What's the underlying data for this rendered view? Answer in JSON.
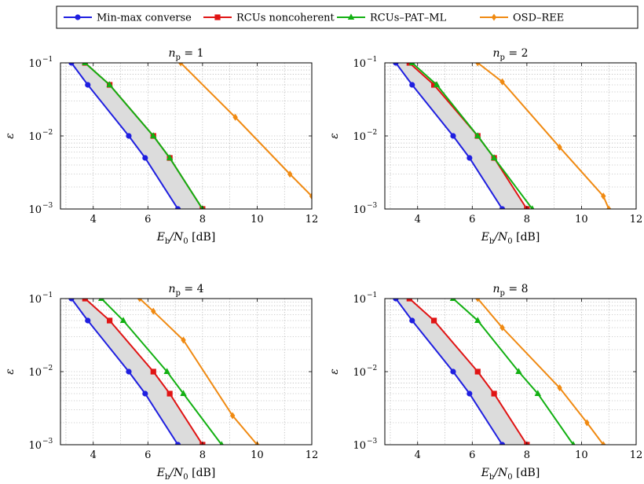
{
  "legend": [
    {
      "name": "Min-max converse",
      "color": "#1f1fe0",
      "marker": "circle"
    },
    {
      "name": "RCUs noncoherent",
      "color": "#e01414",
      "marker": "square"
    },
    {
      "name": "RCUs–PAT–ML",
      "color": "#12b012",
      "marker": "triangle"
    },
    {
      "name": "OSD–REE",
      "color": "#f08a12",
      "marker": "diamond"
    }
  ],
  "chart_data": [
    {
      "type": "line",
      "title": "n_p = 1",
      "xlabel": "E_b/N_0 [dB]",
      "ylabel": "ε",
      "xlim": [
        2.8,
        12
      ],
      "ylim": [
        0.001,
        0.1
      ],
      "yscale": "log",
      "xticks": [
        4,
        6,
        8,
        10,
        12
      ],
      "yticks": [
        "10^-1",
        "10^-2",
        "10^-3"
      ],
      "grid": true,
      "shaded_region_between": [
        "Min-max converse",
        "RCUs noncoherent"
      ],
      "series": [
        {
          "name": "Min-max converse",
          "x": [
            3.2,
            3.8,
            5.3,
            5.9,
            7.1
          ],
          "y": [
            0.1,
            0.05,
            0.01,
            0.005,
            0.001
          ]
        },
        {
          "name": "RCUs noncoherent",
          "x": [
            3.7,
            4.6,
            6.2,
            6.8,
            8.0
          ],
          "y": [
            0.1,
            0.05,
            0.01,
            0.005,
            0.001
          ]
        },
        {
          "name": "RCUs–PAT–ML",
          "x": [
            3.7,
            4.6,
            6.2,
            6.8,
            8.0
          ],
          "y": [
            0.1,
            0.05,
            0.01,
            0.005,
            0.001
          ]
        },
        {
          "name": "OSD–REE",
          "x": [
            7.2,
            9.2,
            11.2,
            12.0
          ],
          "y": [
            0.1,
            0.018,
            0.003,
            0.0015
          ]
        }
      ]
    },
    {
      "type": "line",
      "title": "n_p = 2",
      "xlabel": "E_b/N_0 [dB]",
      "ylabel": "ε",
      "xlim": [
        2.8,
        12
      ],
      "ylim": [
        0.001,
        0.1
      ],
      "yscale": "log",
      "xticks": [
        4,
        6,
        8,
        10,
        12
      ],
      "yticks": [
        "10^-1",
        "10^-2",
        "10^-3"
      ],
      "grid": true,
      "shaded_region_between": [
        "Min-max converse",
        "RCUs noncoherent"
      ],
      "series": [
        {
          "name": "Min-max converse",
          "x": [
            3.2,
            3.8,
            5.3,
            5.9,
            7.1
          ],
          "y": [
            0.1,
            0.05,
            0.01,
            0.005,
            0.001
          ]
        },
        {
          "name": "RCUs noncoherent",
          "x": [
            3.7,
            4.6,
            6.2,
            6.8,
            8.0
          ],
          "y": [
            0.1,
            0.05,
            0.01,
            0.005,
            0.001
          ]
        },
        {
          "name": "RCUs–PAT–ML",
          "x": [
            3.8,
            4.7,
            6.2,
            6.8,
            8.2
          ],
          "y": [
            0.1,
            0.05,
            0.01,
            0.005,
            0.001
          ]
        },
        {
          "name": "OSD–REE",
          "x": [
            6.2,
            7.1,
            9.2,
            10.8,
            11.0
          ],
          "y": [
            0.1,
            0.055,
            0.007,
            0.0015,
            0.001
          ]
        }
      ]
    },
    {
      "type": "line",
      "title": "n_p = 4",
      "xlabel": "E_b/N_0 [dB]",
      "ylabel": "ε",
      "xlim": [
        2.8,
        12
      ],
      "ylim": [
        0.001,
        0.1
      ],
      "yscale": "log",
      "xticks": [
        4,
        6,
        8,
        10,
        12
      ],
      "yticks": [
        "10^-1",
        "10^-2",
        "10^-3"
      ],
      "grid": true,
      "shaded_region_between": [
        "Min-max converse",
        "RCUs noncoherent"
      ],
      "series": [
        {
          "name": "Min-max converse",
          "x": [
            3.2,
            3.8,
            5.3,
            5.9,
            7.1
          ],
          "y": [
            0.1,
            0.05,
            0.01,
            0.005,
            0.001
          ]
        },
        {
          "name": "RCUs noncoherent",
          "x": [
            3.7,
            4.6,
            6.2,
            6.8,
            8.0
          ],
          "y": [
            0.1,
            0.05,
            0.01,
            0.005,
            0.001
          ]
        },
        {
          "name": "RCUs–PAT–ML",
          "x": [
            4.3,
            5.1,
            6.7,
            7.3,
            8.7
          ],
          "y": [
            0.1,
            0.05,
            0.01,
            0.005,
            0.001
          ]
        },
        {
          "name": "OSD–REE",
          "x": [
            5.7,
            6.2,
            7.3,
            9.1,
            10.0
          ],
          "y": [
            0.1,
            0.067,
            0.027,
            0.0025,
            0.001
          ]
        }
      ]
    },
    {
      "type": "line",
      "title": "n_p = 8",
      "xlabel": "E_b/N_0 [dB]",
      "ylabel": "ε",
      "xlim": [
        2.8,
        12
      ],
      "ylim": [
        0.001,
        0.1
      ],
      "yscale": "log",
      "xticks": [
        4,
        6,
        8,
        10,
        12
      ],
      "yticks": [
        "10^-1",
        "10^-2",
        "10^-3"
      ],
      "grid": true,
      "shaded_region_between": [
        "Min-max converse",
        "RCUs noncoherent"
      ],
      "series": [
        {
          "name": "Min-max converse",
          "x": [
            3.2,
            3.8,
            5.3,
            5.9,
            7.1
          ],
          "y": [
            0.1,
            0.05,
            0.01,
            0.005,
            0.001
          ]
        },
        {
          "name": "RCUs noncoherent",
          "x": [
            3.7,
            4.6,
            6.2,
            6.8,
            8.0
          ],
          "y": [
            0.1,
            0.05,
            0.01,
            0.005,
            0.001
          ]
        },
        {
          "name": "RCUs–PAT–ML",
          "x": [
            5.3,
            6.2,
            7.7,
            8.4,
            9.7
          ],
          "y": [
            0.1,
            0.05,
            0.01,
            0.005,
            0.001
          ]
        },
        {
          "name": "OSD–REE",
          "x": [
            6.2,
            7.1,
            9.2,
            10.2,
            10.8
          ],
          "y": [
            0.1,
            0.04,
            0.006,
            0.002,
            0.001
          ]
        }
      ]
    }
  ]
}
